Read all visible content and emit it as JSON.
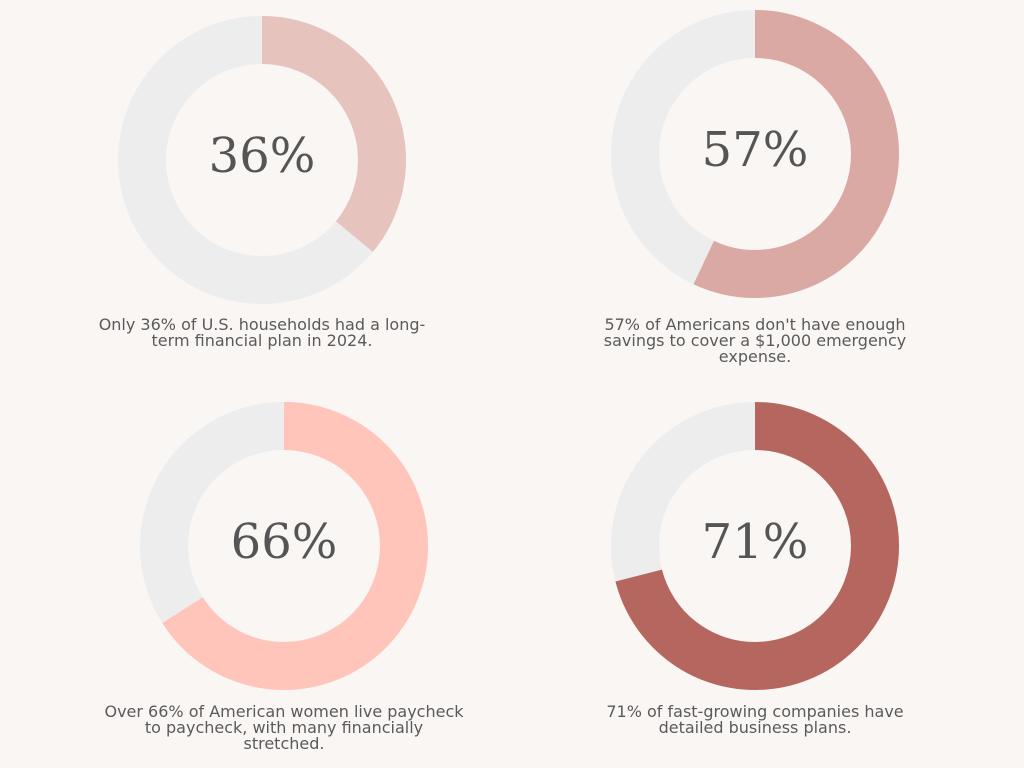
{
  "chart_data": [
    {
      "type": "pie",
      "values": [
        36,
        64
      ],
      "center_label": "36%",
      "caption": "Only 36% of U.S. households had a long-term financial plan in 2024.",
      "color": "#e6c3bd",
      "track_color": "#eeeded"
    },
    {
      "type": "pie",
      "values": [
        57,
        43
      ],
      "center_label": "57%",
      "caption": "57% of Americans don't have enough savings to cover a $1,000 emergency expense.",
      "color": "#dba9a3",
      "track_color": "#eeeded"
    },
    {
      "type": "pie",
      "values": [
        66,
        34
      ],
      "center_label": "66%",
      "caption": "Over 66% of American women live paycheck to paycheck, with many financially stretched.",
      "color": "#ffc4ba",
      "track_color": "#eeeded"
    },
    {
      "type": "pie",
      "values": [
        71,
        29
      ],
      "center_label": "71%",
      "caption": "71% of fast-growing companies have detailed business plans.",
      "color": "#b5665e",
      "track_color": "#eeeded"
    }
  ]
}
